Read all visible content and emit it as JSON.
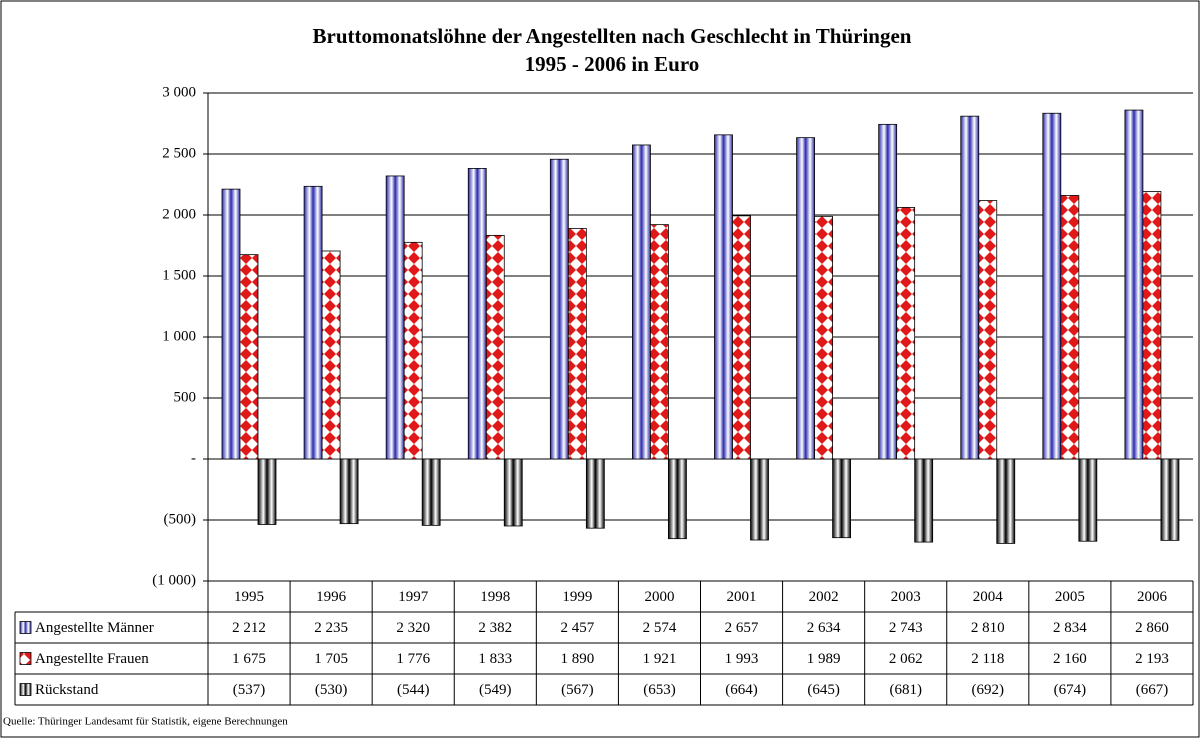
{
  "chart_data": {
    "type": "bar",
    "title": "Bruttomonatslöhne der Angestellten nach Geschlecht in Thüringen",
    "subtitle": "1995 - 2006 in Euro",
    "categories": [
      "1995",
      "1996",
      "1997",
      "1998",
      "1999",
      "2000",
      "2001",
      "2002",
      "2003",
      "2004",
      "2005",
      "2006"
    ],
    "series": [
      {
        "name": "Angestellte Männer",
        "color": "#2a2ab0",
        "values": [
          2212,
          2235,
          2320,
          2382,
          2457,
          2574,
          2657,
          2634,
          2743,
          2810,
          2834,
          2860
        ],
        "value_labels": [
          "2 212",
          "2 235",
          "2 320",
          "2 382",
          "2 457",
          "2 574",
          "2 657",
          "2 634",
          "2 743",
          "2 810",
          "2 834",
          "2 860"
        ]
      },
      {
        "name": "Angestellte Frauen",
        "color": "#e01818",
        "values": [
          1675,
          1705,
          1776,
          1833,
          1890,
          1921,
          1993,
          1989,
          2062,
          2118,
          2160,
          2193
        ],
        "value_labels": [
          "1 675",
          "1 705",
          "1 776",
          "1 833",
          "1 890",
          "1 921",
          "1 993",
          "1 989",
          "2 062",
          "2 118",
          "2 160",
          "2 193"
        ]
      },
      {
        "name": "Rückstand",
        "color": "#000000",
        "values": [
          -537,
          -530,
          -544,
          -549,
          -567,
          -653,
          -664,
          -645,
          -681,
          -692,
          -674,
          -667
        ],
        "value_labels": [
          "(537)",
          "(530)",
          "(544)",
          "(549)",
          "(567)",
          "(653)",
          "(664)",
          "(645)",
          "(681)",
          "(692)",
          "(674)",
          "(667)"
        ]
      }
    ],
    "ylim": [
      -1000,
      3000
    ],
    "yticks": [
      {
        "value": -1000,
        "label": "(1 000)"
      },
      {
        "value": -500,
        "label": "(500)"
      },
      {
        "value": 0,
        "label": "-"
      },
      500,
      {
        "value": 1000,
        "label": "1 000"
      },
      {
        "value": 1500,
        "label": "1 500"
      },
      {
        "value": 2000,
        "label": "2 000"
      },
      {
        "value": 2500,
        "label": "2 500"
      },
      {
        "value": 3000,
        "label": "3 000"
      }
    ],
    "grid": true,
    "source": "Quelle: Thüringer Landesamt für Statistik, eigene Berechnungen"
  }
}
